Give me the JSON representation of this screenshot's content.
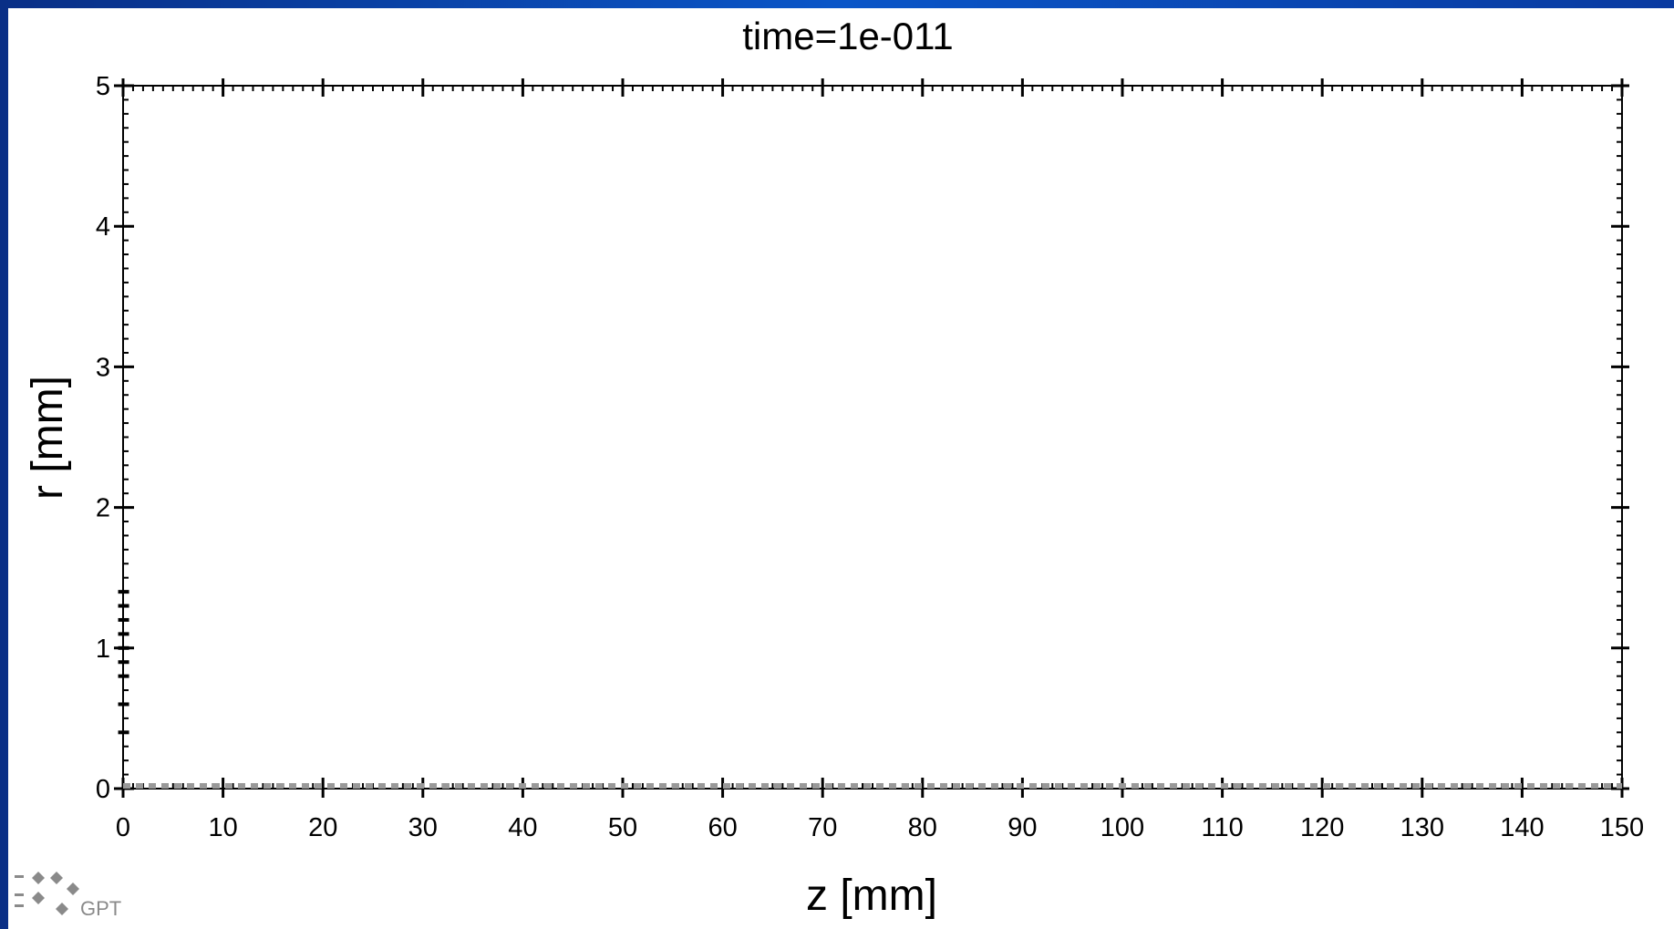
{
  "chart_data": {
    "type": "scatter",
    "title": "time=1e-011",
    "xlabel": "z [mm]",
    "ylabel": "r [mm]",
    "xlim": [
      0,
      150
    ],
    "ylim": [
      0,
      5
    ],
    "x_ticks": [
      0,
      10,
      20,
      30,
      40,
      50,
      60,
      70,
      80,
      90,
      100,
      110,
      120,
      130,
      140,
      150
    ],
    "y_ticks": [
      0,
      1,
      2,
      3,
      4,
      5
    ],
    "x_tick_labels": [
      "0",
      "10",
      "20",
      "30",
      "40",
      "50",
      "60",
      "70",
      "80",
      "90",
      "100",
      "110",
      "120",
      "130",
      "140",
      "150"
    ],
    "y_tick_labels": [
      "0",
      "1",
      "2",
      "3",
      "4",
      "5"
    ],
    "x_minor_step": 1,
    "y_minor_step": 0.1,
    "grid": false,
    "series": [
      {
        "marker": "dash",
        "color": "#999999",
        "points": [
          [
            0.05,
            1.4
          ],
          [
            0.05,
            1.3
          ],
          [
            0.05,
            1.2
          ],
          [
            0.05,
            1.1
          ],
          [
            0.05,
            1.0
          ],
          [
            0.05,
            0.9
          ],
          [
            0.05,
            0.8
          ],
          [
            0.05,
            0.6
          ],
          [
            0.05,
            0.4
          ]
        ]
      }
    ],
    "baseline_dashes": {
      "y": 0,
      "color": "#999999",
      "x_start": 0,
      "x_end": 150
    }
  },
  "logo": {
    "text": "GPT"
  },
  "colors": {
    "frame": "#0b3f9a",
    "plot_bg": "#ffffff",
    "axis": "#000000",
    "data": "#999999"
  }
}
